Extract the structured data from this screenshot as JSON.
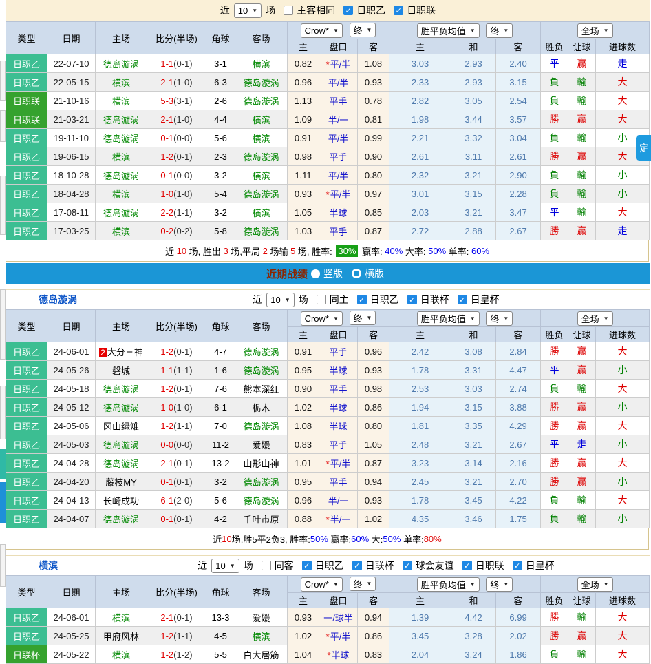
{
  "colors": {
    "type_teal": "#3CBE92",
    "type_green": "#35A22E",
    "header_bg": "#CFDCEC",
    "odds_bg": "#FBF3E7",
    "mean_bg": "#E7F2F9",
    "bar_blue": "#1B96D6",
    "win_red": "#DD0000",
    "lose_green": "#008000",
    "draw_blue": "#0000DD",
    "team_green": "#008800",
    "beige": "#FAF0D7",
    "tab_blue": "#1E9BDF",
    "badge_green": "#17A017"
  },
  "cols": {
    "type": "类型",
    "date": "日期",
    "home": "主场",
    "score": "比分(半场)",
    "corner": "角球",
    "away": "客场",
    "h_home": "主",
    "h_pan": "盘口",
    "h_away": "客",
    "m_home": "主",
    "m_draw": "和",
    "m_away": "客",
    "r_wdl": "胜负",
    "r_handicap": "让球",
    "r_goals": "进球数",
    "sel_crow": "Crow*",
    "sel_end": "终",
    "sel_mean": "胜平负均值",
    "sel_end2": "终",
    "sel_full": "全场"
  },
  "bluebar": {
    "title": "近期战绩",
    "opt1": "竖版",
    "opt2": "横版"
  },
  "float_tab": "定",
  "sections": [
    {
      "team": "",
      "filters": {
        "near": "近",
        "count": "10",
        "games": "场",
        "boxes": [
          [
            "主客相同",
            0
          ],
          [
            "日职乙",
            1
          ],
          [
            "日职联",
            1
          ]
        ]
      },
      "rows": [
        {
          "type": [
            "日职乙",
            "lt"
          ],
          "date": "22-07-10",
          "home": [
            "德岛漩涡",
            1
          ],
          "ft": "1-1",
          "ht": "(0-1)",
          "corner": "3-1",
          "away": [
            "横滨",
            1
          ],
          "o1": "0.82",
          "hc": [
            "平/半",
            1
          ],
          "o2": "1.08",
          "m1": "3.03",
          "m2": "2.93",
          "m3": "2.40",
          "r1": [
            "平",
            "b"
          ],
          "r2": [
            "赢",
            "r"
          ],
          "r3": [
            "走",
            "b"
          ]
        },
        {
          "type": [
            "日职乙",
            "lt"
          ],
          "date": "22-05-15",
          "home": [
            "横滨",
            1
          ],
          "ft": "2-1",
          "ht": "(1-0)",
          "corner": "6-3",
          "away": [
            "德岛漩涡",
            1
          ],
          "o1": "0.96",
          "hc": [
            "平/半",
            0
          ],
          "o2": "0.93",
          "m1": "2.33",
          "m2": "2.93",
          "m3": "3.15",
          "r1": [
            "負",
            "g"
          ],
          "r2": [
            "輸",
            "g"
          ],
          "r3": [
            "大",
            "r"
          ]
        },
        {
          "type": [
            "日职联",
            "dk"
          ],
          "date": "21-10-16",
          "home": [
            "横滨",
            1
          ],
          "ft": "5-3",
          "ht": "(3-1)",
          "corner": "2-6",
          "away": [
            "德岛漩涡",
            1
          ],
          "o1": "1.13",
          "hc": [
            "平手",
            0
          ],
          "o2": "0.78",
          "m1": "2.82",
          "m2": "3.05",
          "m3": "2.54",
          "r1": [
            "負",
            "g"
          ],
          "r2": [
            "輸",
            "g"
          ],
          "r3": [
            "大",
            "r"
          ]
        },
        {
          "type": [
            "日职联",
            "dk"
          ],
          "date": "21-03-21",
          "home": [
            "德岛漩涡",
            1
          ],
          "ft": "2-1",
          "ht": "(1-0)",
          "corner": "4-4",
          "away": [
            "横滨",
            1
          ],
          "o1": "1.09",
          "hc": [
            "半/一",
            0
          ],
          "o2": "0.81",
          "m1": "1.98",
          "m2": "3.44",
          "m3": "3.57",
          "r1": [
            "勝",
            "r"
          ],
          "r2": [
            "赢",
            "r"
          ],
          "r3": [
            "大",
            "r"
          ]
        },
        {
          "type": [
            "日职乙",
            "lt"
          ],
          "date": "19-11-10",
          "home": [
            "德岛漩涡",
            1
          ],
          "ft": "0-1",
          "ht": "(0-0)",
          "corner": "5-6",
          "away": [
            "横滨",
            1
          ],
          "o1": "0.91",
          "hc": [
            "平/半",
            0
          ],
          "o2": "0.99",
          "m1": "2.21",
          "m2": "3.32",
          "m3": "3.04",
          "r1": [
            "負",
            "g"
          ],
          "r2": [
            "輸",
            "g"
          ],
          "r3": [
            "小",
            "g"
          ]
        },
        {
          "type": [
            "日职乙",
            "lt"
          ],
          "date": "19-06-15",
          "home": [
            "横滨",
            1
          ],
          "ft": "1-2",
          "ht": "(0-1)",
          "corner": "2-3",
          "away": [
            "德岛漩涡",
            1
          ],
          "o1": "0.98",
          "hc": [
            "平手",
            0
          ],
          "o2": "0.90",
          "m1": "2.61",
          "m2": "3.11",
          "m3": "2.61",
          "r1": [
            "勝",
            "r"
          ],
          "r2": [
            "赢",
            "r"
          ],
          "r3": [
            "大",
            "r"
          ]
        },
        {
          "type": [
            "日职乙",
            "lt"
          ],
          "date": "18-10-28",
          "home": [
            "德岛漩涡",
            1
          ],
          "ft": "0-1",
          "ht": "(0-0)",
          "corner": "3-2",
          "away": [
            "横滨",
            1
          ],
          "o1": "1.11",
          "hc": [
            "平/半",
            0
          ],
          "o2": "0.80",
          "m1": "2.32",
          "m2": "3.21",
          "m3": "2.90",
          "r1": [
            "負",
            "g"
          ],
          "r2": [
            "輸",
            "g"
          ],
          "r3": [
            "小",
            "g"
          ]
        },
        {
          "type": [
            "日职乙",
            "lt"
          ],
          "date": "18-04-28",
          "home": [
            "横滨",
            1
          ],
          "ft": "1-0",
          "ht": "(1-0)",
          "corner": "5-4",
          "away": [
            "德岛漩涡",
            1
          ],
          "o1": "0.93",
          "hc": [
            "平/半",
            1
          ],
          "o2": "0.97",
          "m1": "3.01",
          "m2": "3.15",
          "m3": "2.28",
          "r1": [
            "負",
            "g"
          ],
          "r2": [
            "輸",
            "g"
          ],
          "r3": [
            "小",
            "g"
          ]
        },
        {
          "type": [
            "日职乙",
            "lt"
          ],
          "date": "17-08-11",
          "home": [
            "德岛漩涡",
            1
          ],
          "ft": "2-2",
          "ht": "(1-1)",
          "corner": "3-2",
          "away": [
            "横滨",
            1
          ],
          "o1": "1.05",
          "hc": [
            "半球",
            0
          ],
          "o2": "0.85",
          "m1": "2.03",
          "m2": "3.21",
          "m3": "3.47",
          "r1": [
            "平",
            "b"
          ],
          "r2": [
            "輸",
            "g"
          ],
          "r3": [
            "大",
            "r"
          ]
        },
        {
          "type": [
            "日职乙",
            "lt"
          ],
          "date": "17-03-25",
          "home": [
            "横滨",
            1
          ],
          "ft": "0-2",
          "ht": "(0-2)",
          "corner": "5-8",
          "away": [
            "德岛漩涡",
            1
          ],
          "o1": "1.03",
          "hc": [
            "平手",
            0
          ],
          "o2": "0.87",
          "m1": "2.72",
          "m2": "2.88",
          "m3": "2.67",
          "r1": [
            "勝",
            "r"
          ],
          "r2": [
            "赢",
            "r"
          ],
          "r3": [
            "走",
            "b"
          ]
        }
      ],
      "summary": [
        [
          "近 ",
          "k"
        ],
        [
          "10",
          "r"
        ],
        [
          " 场, 胜出 ",
          "k"
        ],
        [
          "3",
          "r"
        ],
        [
          " 场,平局 ",
          "k"
        ],
        [
          "2",
          "r"
        ],
        [
          " 场输 ",
          "k"
        ],
        [
          "5",
          "r"
        ],
        [
          " 场, 胜率: ",
          "k"
        ],
        [
          "30%",
          "badge"
        ],
        [
          " 赢率: ",
          "k"
        ],
        [
          "40%",
          "b"
        ],
        [
          " 大率: ",
          "k"
        ],
        [
          "50%",
          "b"
        ],
        [
          " 单率: ",
          "k"
        ],
        [
          "60%",
          "b"
        ]
      ]
    },
    {
      "team": "德岛漩涡",
      "filters": {
        "near": "近",
        "count": "10",
        "games": "场",
        "boxes": [
          [
            "同主",
            0
          ],
          [
            "日职乙",
            1
          ],
          [
            "日联杯",
            1
          ],
          [
            "日皇杯",
            1
          ]
        ]
      },
      "rows": [
        {
          "type": [
            "日职乙",
            "lt"
          ],
          "date": "24-06-01",
          "hb": "2",
          "home": [
            "大分三神",
            0
          ],
          "ft": "1-2",
          "ht": "(0-1)",
          "corner": "4-7",
          "away": [
            "德岛漩涡",
            1
          ],
          "o1": "0.91",
          "hc": [
            "平手",
            0
          ],
          "o2": "0.96",
          "m1": "2.42",
          "m2": "3.08",
          "m3": "2.84",
          "r1": [
            "勝",
            "r"
          ],
          "r2": [
            "赢",
            "r"
          ],
          "r3": [
            "大",
            "r"
          ]
        },
        {
          "type": [
            "日职乙",
            "lt"
          ],
          "date": "24-05-26",
          "home": [
            "磐城",
            0
          ],
          "ft": "1-1",
          "ht": "(1-1)",
          "corner": "1-6",
          "away": [
            "德岛漩涡",
            1
          ],
          "o1": "0.95",
          "hc": [
            "半球",
            0
          ],
          "o2": "0.93",
          "m1": "1.78",
          "m2": "3.31",
          "m3": "4.47",
          "r1": [
            "平",
            "b"
          ],
          "r2": [
            "赢",
            "r"
          ],
          "r3": [
            "小",
            "g"
          ]
        },
        {
          "type": [
            "日职乙",
            "lt"
          ],
          "date": "24-05-18",
          "home": [
            "德岛漩涡",
            1
          ],
          "ft": "1-2",
          "ht": "(0-1)",
          "corner": "7-6",
          "away": [
            "熊本深红",
            0
          ],
          "o1": "0.90",
          "hc": [
            "平手",
            0
          ],
          "o2": "0.98",
          "m1": "2.53",
          "m2": "3.03",
          "m3": "2.74",
          "r1": [
            "負",
            "g"
          ],
          "r2": [
            "輸",
            "g"
          ],
          "r3": [
            "大",
            "r"
          ]
        },
        {
          "type": [
            "日职乙",
            "lt"
          ],
          "date": "24-05-12",
          "home": [
            "德岛漩涡",
            1
          ],
          "ft": "1-0",
          "ht": "(1-0)",
          "corner": "6-1",
          "away": [
            "栃木",
            0
          ],
          "o1": "1.02",
          "hc": [
            "半球",
            0
          ],
          "o2": "0.86",
          "m1": "1.94",
          "m2": "3.15",
          "m3": "3.88",
          "r1": [
            "勝",
            "r"
          ],
          "r2": [
            "赢",
            "r"
          ],
          "r3": [
            "小",
            "g"
          ]
        },
        {
          "type": [
            "日职乙",
            "lt"
          ],
          "date": "24-05-06",
          "home": [
            "冈山绿雉",
            0
          ],
          "ft": "1-2",
          "ht": "(1-1)",
          "corner": "7-0",
          "away": [
            "德岛漩涡",
            1
          ],
          "o1": "1.08",
          "hc": [
            "半球",
            0
          ],
          "o2": "0.80",
          "m1": "1.81",
          "m2": "3.35",
          "m3": "4.29",
          "r1": [
            "勝",
            "r"
          ],
          "r2": [
            "赢",
            "r"
          ],
          "r3": [
            "大",
            "r"
          ]
        },
        {
          "type": [
            "日职乙",
            "lt"
          ],
          "date": "24-05-03",
          "home": [
            "德岛漩涡",
            1
          ],
          "ft": "0-0",
          "ht": "(0-0)",
          "corner": "11-2",
          "away": [
            "爱媛",
            0
          ],
          "o1": "0.83",
          "hc": [
            "平手",
            0
          ],
          "o2": "1.05",
          "m1": "2.48",
          "m2": "3.21",
          "m3": "2.67",
          "r1": [
            "平",
            "b"
          ],
          "r2": [
            "走",
            "b"
          ],
          "r3": [
            "小",
            "g"
          ]
        },
        {
          "type": [
            "日职乙",
            "lt"
          ],
          "date": "24-04-28",
          "home": [
            "德岛漩涡",
            1
          ],
          "ft": "2-1",
          "ht": "(0-1)",
          "corner": "13-2",
          "away": [
            "山形山神",
            0
          ],
          "o1": "1.01",
          "hc": [
            "平/半",
            1
          ],
          "o2": "0.87",
          "m1": "3.23",
          "m2": "3.14",
          "m3": "2.16",
          "r1": [
            "勝",
            "r"
          ],
          "r2": [
            "赢",
            "r"
          ],
          "r3": [
            "大",
            "r"
          ]
        },
        {
          "type": [
            "日职乙",
            "lt"
          ],
          "date": "24-04-20",
          "home": [
            "藤枝MY",
            0
          ],
          "ft": "0-1",
          "ht": "(0-1)",
          "corner": "3-2",
          "away": [
            "德岛漩涡",
            1
          ],
          "o1": "0.95",
          "hc": [
            "平手",
            0
          ],
          "o2": "0.94",
          "m1": "2.45",
          "m2": "3.21",
          "m3": "2.70",
          "r1": [
            "勝",
            "r"
          ],
          "r2": [
            "赢",
            "r"
          ],
          "r3": [
            "小",
            "g"
          ]
        },
        {
          "type": [
            "日职乙",
            "lt"
          ],
          "date": "24-04-13",
          "home": [
            "长崎成功",
            0
          ],
          "ft": "6-1",
          "ht": "(2-0)",
          "corner": "5-6",
          "away": [
            "德岛漩涡",
            1
          ],
          "o1": "0.96",
          "hc": [
            "半/一",
            0
          ],
          "o2": "0.93",
          "m1": "1.78",
          "m2": "3.45",
          "m3": "4.22",
          "r1": [
            "負",
            "g"
          ],
          "r2": [
            "輸",
            "g"
          ],
          "r3": [
            "大",
            "r"
          ]
        },
        {
          "type": [
            "日职乙",
            "lt"
          ],
          "date": "24-04-07",
          "home": [
            "德岛漩涡",
            1
          ],
          "ft": "0-1",
          "ht": "(0-1)",
          "corner": "4-2",
          "away": [
            "千叶市原",
            0
          ],
          "o1": "0.88",
          "hc": [
            "半/一",
            1
          ],
          "o2": "1.02",
          "m1": "4.35",
          "m2": "3.46",
          "m3": "1.75",
          "r1": [
            "負",
            "g"
          ],
          "r2": [
            "輸",
            "g"
          ],
          "r3": [
            "小",
            "g"
          ]
        }
      ],
      "summary": [
        [
          "近",
          "k"
        ],
        [
          "10",
          "r"
        ],
        [
          "场,胜5平2负3, 胜率:",
          "k"
        ],
        [
          "50%",
          "b"
        ],
        [
          " 赢率:",
          "k"
        ],
        [
          "60%",
          "b"
        ],
        [
          " 大:",
          "k"
        ],
        [
          "50%",
          "b"
        ],
        [
          " 单率:",
          "k"
        ],
        [
          "80%",
          "r"
        ]
      ]
    },
    {
      "team": "横滨",
      "filters": {
        "near": "近",
        "count": "10",
        "games": "场",
        "boxes": [
          [
            "同客",
            0
          ],
          [
            "日职乙",
            1
          ],
          [
            "日联杯",
            1
          ],
          [
            "球会友谊",
            1
          ],
          [
            "日职联",
            1
          ],
          [
            "日皇杯",
            1
          ]
        ]
      },
      "rows": [
        {
          "type": [
            "日职乙",
            "lt"
          ],
          "date": "24-06-01",
          "home": [
            "横滨",
            1
          ],
          "ft": "2-1",
          "ht": "(0-1)",
          "corner": "13-3",
          "away": [
            "爱媛",
            0
          ],
          "o1": "0.93",
          "hc": [
            "一/球半",
            0
          ],
          "o2": "0.94",
          "m1": "1.39",
          "m2": "4.42",
          "m3": "6.99",
          "r1": [
            "勝",
            "r"
          ],
          "r2": [
            "輸",
            "g"
          ],
          "r3": [
            "大",
            "r"
          ]
        },
        {
          "type": [
            "日职乙",
            "lt"
          ],
          "date": "24-05-25",
          "home": [
            "甲府风林",
            0
          ],
          "ft": "1-2",
          "ht": "(1-1)",
          "corner": "4-5",
          "away": [
            "横滨",
            1
          ],
          "o1": "1.02",
          "hc": [
            "平/半",
            1
          ],
          "o2": "0.86",
          "m1": "3.45",
          "m2": "3.28",
          "m3": "2.02",
          "r1": [
            "勝",
            "r"
          ],
          "r2": [
            "赢",
            "r"
          ],
          "r3": [
            "大",
            "r"
          ]
        },
        {
          "type": [
            "日联杯",
            "dk"
          ],
          "date": "24-05-22",
          "home": [
            "横滨",
            1
          ],
          "ft": "1-2",
          "ht": "(1-2)",
          "corner": "5-5",
          "away": [
            "白大居筋",
            0
          ],
          "o1": "1.04",
          "hc": [
            "半球",
            1
          ],
          "o2": "0.83",
          "m1": "2.04",
          "m2": "3.24",
          "m3": "1.86",
          "r1": [
            "負",
            "g"
          ],
          "r2": [
            "輸",
            "g"
          ],
          "r3": [
            "大",
            "r"
          ]
        }
      ],
      "summary": []
    }
  ]
}
